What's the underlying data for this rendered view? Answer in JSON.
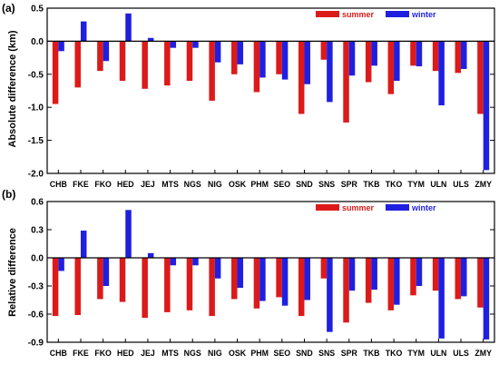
{
  "chart_data": [
    {
      "type": "bar",
      "panel_label": "(a)",
      "ylabel": "Absolute difference (km)",
      "ylim": [
        -2.0,
        0.5
      ],
      "yticks": [
        0.5,
        0.0,
        -0.5,
        -1.0,
        -1.5,
        -2.0
      ],
      "ytick_labels": [
        "0.5",
        "0.0",
        "-0.5",
        "-1.0",
        "-1.5",
        "-2.0"
      ],
      "categories": [
        "CHB",
        "FKE",
        "FKO",
        "HED",
        "JEJ",
        "MTS",
        "NGS",
        "NIG",
        "OSK",
        "PHM",
        "SEO",
        "SND",
        "SNS",
        "SPR",
        "TKB",
        "TKO",
        "TYM",
        "ULN",
        "ULS",
        "ZMY"
      ],
      "series": [
        {
          "name": "summer",
          "color": "#dd1a1a",
          "values": [
            -0.95,
            -0.7,
            -0.45,
            -0.6,
            -0.72,
            -0.67,
            -0.6,
            -0.9,
            -0.5,
            -0.77,
            -0.5,
            -1.1,
            -0.28,
            -1.23,
            -0.62,
            -0.8,
            -0.37,
            -0.45,
            -0.48,
            -1.1
          ]
        },
        {
          "name": "winter",
          "color": "#1f1fe0",
          "values": [
            -0.15,
            0.3,
            -0.3,
            0.42,
            0.05,
            -0.1,
            -0.1,
            -0.32,
            -0.35,
            -0.55,
            -0.58,
            -0.65,
            -0.92,
            -0.52,
            -0.37,
            -0.6,
            -0.38,
            -0.97,
            -0.42,
            -1.95
          ]
        }
      ],
      "legend_position": "top-right"
    },
    {
      "type": "bar",
      "panel_label": "(b)",
      "ylabel": "Relative difference",
      "ylim": [
        -0.9,
        0.6
      ],
      "yticks": [
        0.6,
        0.3,
        0.0,
        -0.3,
        -0.6,
        -0.9
      ],
      "ytick_labels": [
        "0.6",
        "0.3",
        "0.0",
        "-0.3",
        "-0.6",
        "-0.9"
      ],
      "categories": [
        "CHB",
        "FKE",
        "FKO",
        "HED",
        "JEJ",
        "MTS",
        "NGS",
        "NIG",
        "OSK",
        "PHM",
        "SEO",
        "SND",
        "SNS",
        "SPR",
        "TKB",
        "TKO",
        "TYM",
        "ULN",
        "ULS",
        "ZMY"
      ],
      "series": [
        {
          "name": "summer",
          "color": "#dd1a1a",
          "values": [
            -0.62,
            -0.61,
            -0.44,
            -0.47,
            -0.64,
            -0.58,
            -0.56,
            -0.62,
            -0.44,
            -0.54,
            -0.42,
            -0.62,
            -0.22,
            -0.69,
            -0.48,
            -0.56,
            -0.4,
            -0.35,
            -0.44,
            -0.53
          ]
        },
        {
          "name": "winter",
          "color": "#1f1fe0",
          "values": [
            -0.14,
            0.29,
            -0.3,
            0.51,
            0.05,
            -0.08,
            -0.08,
            -0.22,
            -0.32,
            -0.46,
            -0.51,
            -0.45,
            -0.79,
            -0.35,
            -0.34,
            -0.5,
            -0.3,
            -0.86,
            -0.41,
            -0.87
          ]
        }
      ],
      "legend_position": "top-right"
    }
  ]
}
